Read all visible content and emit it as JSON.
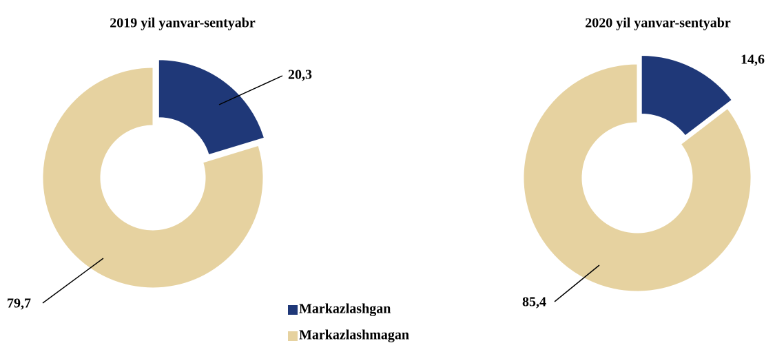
{
  "chart_data": [
    {
      "type": "pie",
      "title": "2019 yil yanvar-sentyabr",
      "categories": [
        "Markazlashgan",
        "Markazlashmagan"
      ],
      "values": [
        20.3,
        79.7
      ],
      "value_labels": [
        "20,3",
        "79,7"
      ],
      "colors": [
        "#1f3878",
        "#e6d2a0"
      ],
      "donut": true,
      "legend": true
    },
    {
      "type": "pie",
      "title": "2020 yil yanvar-sentyabr",
      "categories": [
        "Markazlashgan",
        "Markazlashmagan"
      ],
      "values": [
        14.6,
        85.4
      ],
      "value_labels": [
        "14,6",
        "85,4"
      ],
      "colors": [
        "#1f3878",
        "#e6d2a0"
      ],
      "donut": true,
      "legend": false
    }
  ]
}
